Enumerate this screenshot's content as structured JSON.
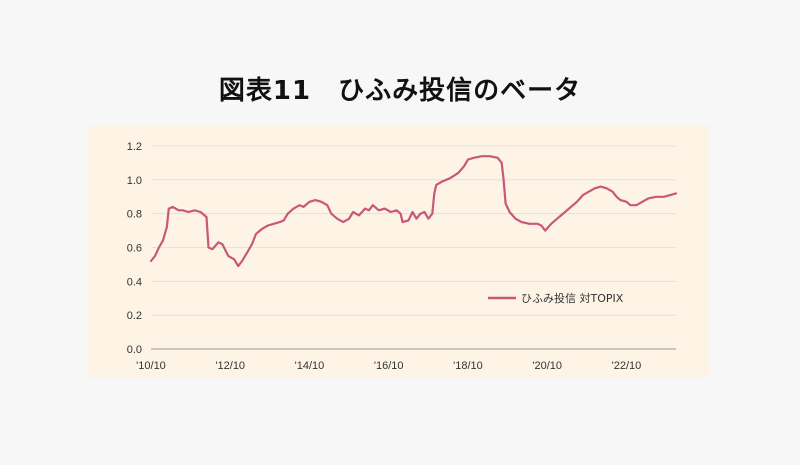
{
  "title": "図表11　ひふみ投信のベータ",
  "chart_data": {
    "type": "line",
    "title": "図表11　ひふみ投信のベータ",
    "xlabel": "",
    "ylabel": "",
    "ylim": [
      0.0,
      1.2
    ],
    "yticks": [
      "1.2",
      "1.0",
      "0.8",
      "0.6",
      "0.4",
      "0.2",
      "0.0"
    ],
    "xlim": [
      2010.75,
      2024.0
    ],
    "xticks": [
      {
        "label": "'10/10",
        "x": 2010.75
      },
      {
        "label": "'12/10",
        "x": 2012.75
      },
      {
        "label": "'14/10",
        "x": 2014.75
      },
      {
        "label": "'16/10",
        "x": 2016.75
      },
      {
        "label": "'18/10",
        "x": 2018.75
      },
      {
        "label": "'20/10",
        "x": 2020.75
      },
      {
        "label": "'22/10",
        "x": 2022.75
      }
    ],
    "grid": true,
    "legend": "right-middle",
    "series": [
      {
        "name": "ひふみ投信 対TOPIX",
        "color": "#c9577a",
        "points": [
          [
            2010.75,
            0.52
          ],
          [
            2010.85,
            0.55
          ],
          [
            2010.95,
            0.6
          ],
          [
            2011.05,
            0.64
          ],
          [
            2011.15,
            0.72
          ],
          [
            2011.2,
            0.83
          ],
          [
            2011.3,
            0.84
          ],
          [
            2011.45,
            0.82
          ],
          [
            2011.55,
            0.82
          ],
          [
            2011.7,
            0.81
          ],
          [
            2011.85,
            0.82
          ],
          [
            2012.0,
            0.81
          ],
          [
            2012.15,
            0.78
          ],
          [
            2012.2,
            0.6
          ],
          [
            2012.3,
            0.59
          ],
          [
            2012.45,
            0.63
          ],
          [
            2012.55,
            0.62
          ],
          [
            2012.7,
            0.55
          ],
          [
            2012.85,
            0.53
          ],
          [
            2012.95,
            0.49
          ],
          [
            2013.05,
            0.52
          ],
          [
            2013.2,
            0.58
          ],
          [
            2013.3,
            0.62
          ],
          [
            2013.4,
            0.68
          ],
          [
            2013.55,
            0.71
          ],
          [
            2013.7,
            0.73
          ],
          [
            2013.85,
            0.74
          ],
          [
            2014.0,
            0.75
          ],
          [
            2014.1,
            0.76
          ],
          [
            2014.2,
            0.8
          ],
          [
            2014.35,
            0.83
          ],
          [
            2014.5,
            0.85
          ],
          [
            2014.6,
            0.84
          ],
          [
            2014.75,
            0.87
          ],
          [
            2014.9,
            0.88
          ],
          [
            2015.05,
            0.87
          ],
          [
            2015.2,
            0.85
          ],
          [
            2015.3,
            0.8
          ],
          [
            2015.45,
            0.77
          ],
          [
            2015.6,
            0.75
          ],
          [
            2015.75,
            0.77
          ],
          [
            2015.85,
            0.81
          ],
          [
            2016.0,
            0.79
          ],
          [
            2016.15,
            0.83
          ],
          [
            2016.25,
            0.82
          ],
          [
            2016.35,
            0.85
          ],
          [
            2016.5,
            0.82
          ],
          [
            2016.65,
            0.83
          ],
          [
            2016.8,
            0.81
          ],
          [
            2016.95,
            0.82
          ],
          [
            2017.05,
            0.8
          ],
          [
            2017.1,
            0.75
          ],
          [
            2017.25,
            0.76
          ],
          [
            2017.35,
            0.81
          ],
          [
            2017.45,
            0.77
          ],
          [
            2017.55,
            0.8
          ],
          [
            2017.65,
            0.81
          ],
          [
            2017.75,
            0.77
          ],
          [
            2017.85,
            0.8
          ],
          [
            2017.9,
            0.92
          ],
          [
            2017.95,
            0.97
          ],
          [
            2018.1,
            0.99
          ],
          [
            2018.3,
            1.01
          ],
          [
            2018.5,
            1.04
          ],
          [
            2018.65,
            1.08
          ],
          [
            2018.75,
            1.12
          ],
          [
            2018.9,
            1.13
          ],
          [
            2019.1,
            1.14
          ],
          [
            2019.3,
            1.14
          ],
          [
            2019.5,
            1.13
          ],
          [
            2019.6,
            1.1
          ],
          [
            2019.65,
            1.0
          ],
          [
            2019.7,
            0.86
          ],
          [
            2019.8,
            0.81
          ],
          [
            2019.95,
            0.77
          ],
          [
            2020.1,
            0.75
          ],
          [
            2020.3,
            0.74
          ],
          [
            2020.5,
            0.74
          ],
          [
            2020.6,
            0.73
          ],
          [
            2020.7,
            0.7
          ],
          [
            2020.85,
            0.74
          ],
          [
            2021.0,
            0.77
          ],
          [
            2021.1,
            0.79
          ],
          [
            2021.3,
            0.83
          ],
          [
            2021.5,
            0.87
          ],
          [
            2021.65,
            0.91
          ],
          [
            2021.8,
            0.93
          ],
          [
            2021.95,
            0.95
          ],
          [
            2022.1,
            0.96
          ],
          [
            2022.25,
            0.95
          ],
          [
            2022.4,
            0.93
          ],
          [
            2022.5,
            0.9
          ],
          [
            2022.6,
            0.88
          ],
          [
            2022.75,
            0.87
          ],
          [
            2022.85,
            0.85
          ],
          [
            2023.0,
            0.85
          ],
          [
            2023.15,
            0.87
          ],
          [
            2023.3,
            0.89
          ],
          [
            2023.5,
            0.9
          ],
          [
            2023.7,
            0.9
          ],
          [
            2023.85,
            0.91
          ],
          [
            2024.0,
            0.92
          ]
        ]
      }
    ]
  }
}
